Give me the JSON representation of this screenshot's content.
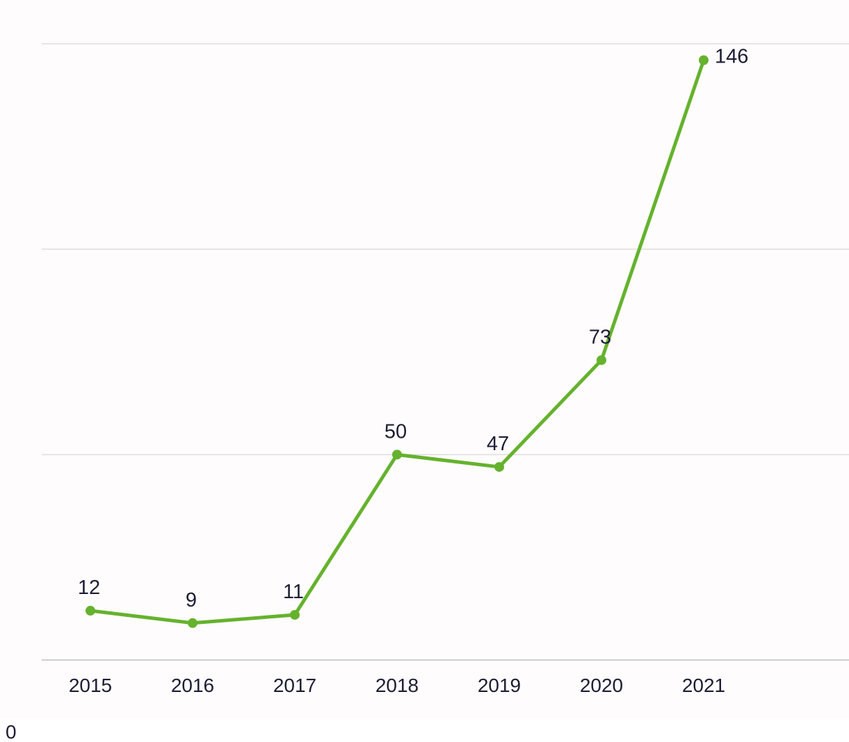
{
  "chart_data": {
    "type": "line",
    "categories": [
      "2015",
      "2016",
      "2017",
      "2018",
      "2019",
      "2020",
      "2021"
    ],
    "series": [
      {
        "values": [
          12,
          9,
          11,
          50,
          47,
          73,
          146
        ]
      }
    ],
    "data_labels": [
      "12",
      "9",
      "11",
      "50",
      "47",
      "73",
      "146"
    ],
    "ylim": [
      0,
      150
    ],
    "grid_values": [
      0,
      50,
      100,
      150
    ],
    "grid": true,
    "legend": "none",
    "title": "",
    "xlabel": "",
    "ylabel": "",
    "colors": {
      "line": "#65b22e",
      "grid": "#dddddd",
      "text": "#1d1d35",
      "background": "#fefcfc"
    }
  },
  "stray_label": "0"
}
